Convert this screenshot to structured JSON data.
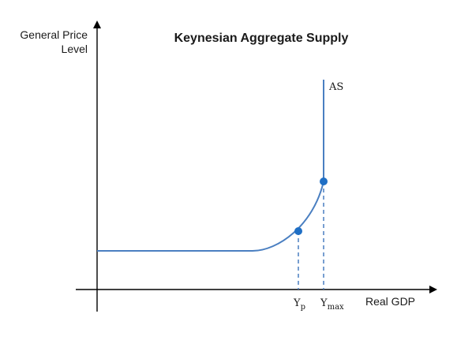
{
  "title": "Keynesian Aggregate Supply",
  "axes": {
    "y_label_line1": "General Price",
    "y_label_line2": "Level",
    "x_label": "Real GDP"
  },
  "curve": {
    "label": "AS"
  },
  "x_markers": {
    "potential": {
      "base": "Y",
      "sub": "p"
    },
    "maximum": {
      "base": "Y",
      "sub": "max"
    }
  },
  "colors": {
    "curve": "#4a7fc1",
    "point": "#1f6fc5",
    "axis": "#000000",
    "text": "#1a1a1a"
  }
}
